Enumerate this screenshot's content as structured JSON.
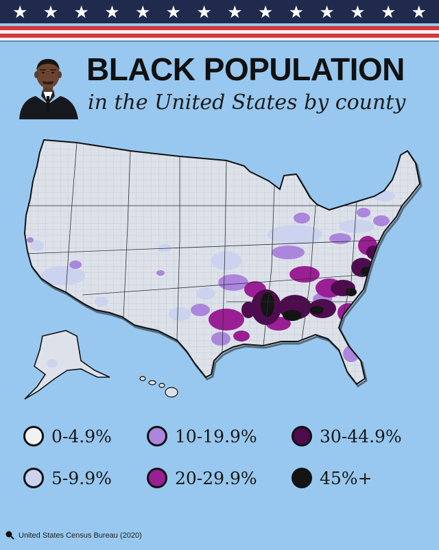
{
  "header": {
    "title": "BLACK POPULATION",
    "subtitle": "in the United States by county"
  },
  "banner": {
    "star_glyph": "★",
    "star_count": 14,
    "colors": {
      "navy": "#1f2a4d",
      "red": "#d23a3f",
      "white": "#f4f4f4"
    }
  },
  "legend": {
    "items": [
      {
        "label": "0-4.9%",
        "color": "#f2f2f5"
      },
      {
        "label": "10-19.9%",
        "color": "#ac86dd"
      },
      {
        "label": "30-44.9%",
        "color": "#4e0c4e"
      },
      {
        "label": "5-9.9%",
        "color": "#cbd3ee"
      },
      {
        "label": "20-29.9%",
        "color": "#9a1f94"
      },
      {
        "label": "45%+",
        "color": "#141414"
      }
    ]
  },
  "source": {
    "text": "United States Census Bureau (2020)"
  },
  "map": {
    "base_color": "#dde2ea",
    "background_color": "#98c8ef"
  }
}
